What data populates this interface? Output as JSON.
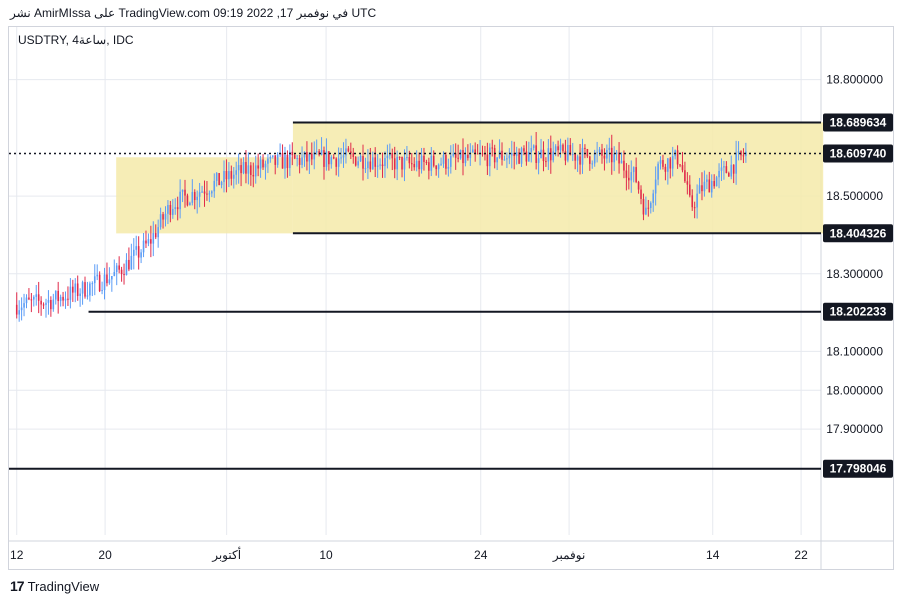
{
  "header": {
    "published_text": "نشر AmirMIssa على TradingView.com 09:19 2022 ,17 في نوفمبر UTC"
  },
  "symbol": {
    "label": "USDTRY, 4ساعة, IDC"
  },
  "footer": {
    "brand": "TradingView",
    "logo": "17"
  },
  "colors": {
    "up": "#5b9cf6",
    "down": "#e0294a",
    "zone": "#f5eaa9",
    "line": "#131722",
    "grid": "#e6e9ef"
  },
  "chart_data": {
    "type": "candlestick",
    "y_axis": {
      "ticks": [
        "18.800000",
        "18.500000",
        "18.300000",
        "18.100000",
        "18.000000",
        "17.900000"
      ],
      "tick_values": [
        18.8,
        18.5,
        18.3,
        18.1,
        18.0,
        17.9
      ],
      "range": [
        17.72,
        18.92
      ]
    },
    "x_axis": {
      "ticks": [
        {
          "label": "12",
          "day": 0
        },
        {
          "label": "20",
          "day": 8
        },
        {
          "label": "أكتوبر",
          "day": 19
        },
        {
          "label": "10",
          "day": 28
        },
        {
          "label": "24",
          "day": 42
        },
        {
          "label": "نوفمبر",
          "day": 50
        },
        {
          "label": "14",
          "day": 63
        },
        {
          "label": "22",
          "day": 71
        }
      ],
      "range": [
        -0.7,
        72.8
      ]
    },
    "price_lines": [
      {
        "label": "18.689634",
        "value": 18.689634
      },
      {
        "label": "18.609740",
        "value": 18.60974,
        "style": "dotted",
        "current": true
      },
      {
        "label": "18.404326",
        "value": 18.404326
      },
      {
        "label": "18.202233",
        "value": 18.202233
      },
      {
        "label": "17.798046",
        "value": 17.798046
      }
    ],
    "zones": [
      {
        "x_start": 9,
        "x_end": 25,
        "y_top": 18.6,
        "y_bottom": 18.404
      },
      {
        "x_start": 25,
        "x_end": 73,
        "y_top": 18.69,
        "y_bottom": 18.404
      }
    ],
    "trend": {
      "x": [
        0,
        3,
        6,
        9,
        12,
        14,
        17,
        20,
        24,
        30,
        36,
        42,
        48,
        54,
        56,
        57,
        58,
        60,
        61,
        62,
        64,
        66
      ],
      "y": [
        18.22,
        18.23,
        18.26,
        18.3,
        18.38,
        18.48,
        18.52,
        18.56,
        18.59,
        18.6,
        18.58,
        18.6,
        18.61,
        18.6,
        18.55,
        18.45,
        18.58,
        18.6,
        18.47,
        18.52,
        18.56,
        18.61
      ]
    },
    "candle_count": 300,
    "x_last": 66
  }
}
